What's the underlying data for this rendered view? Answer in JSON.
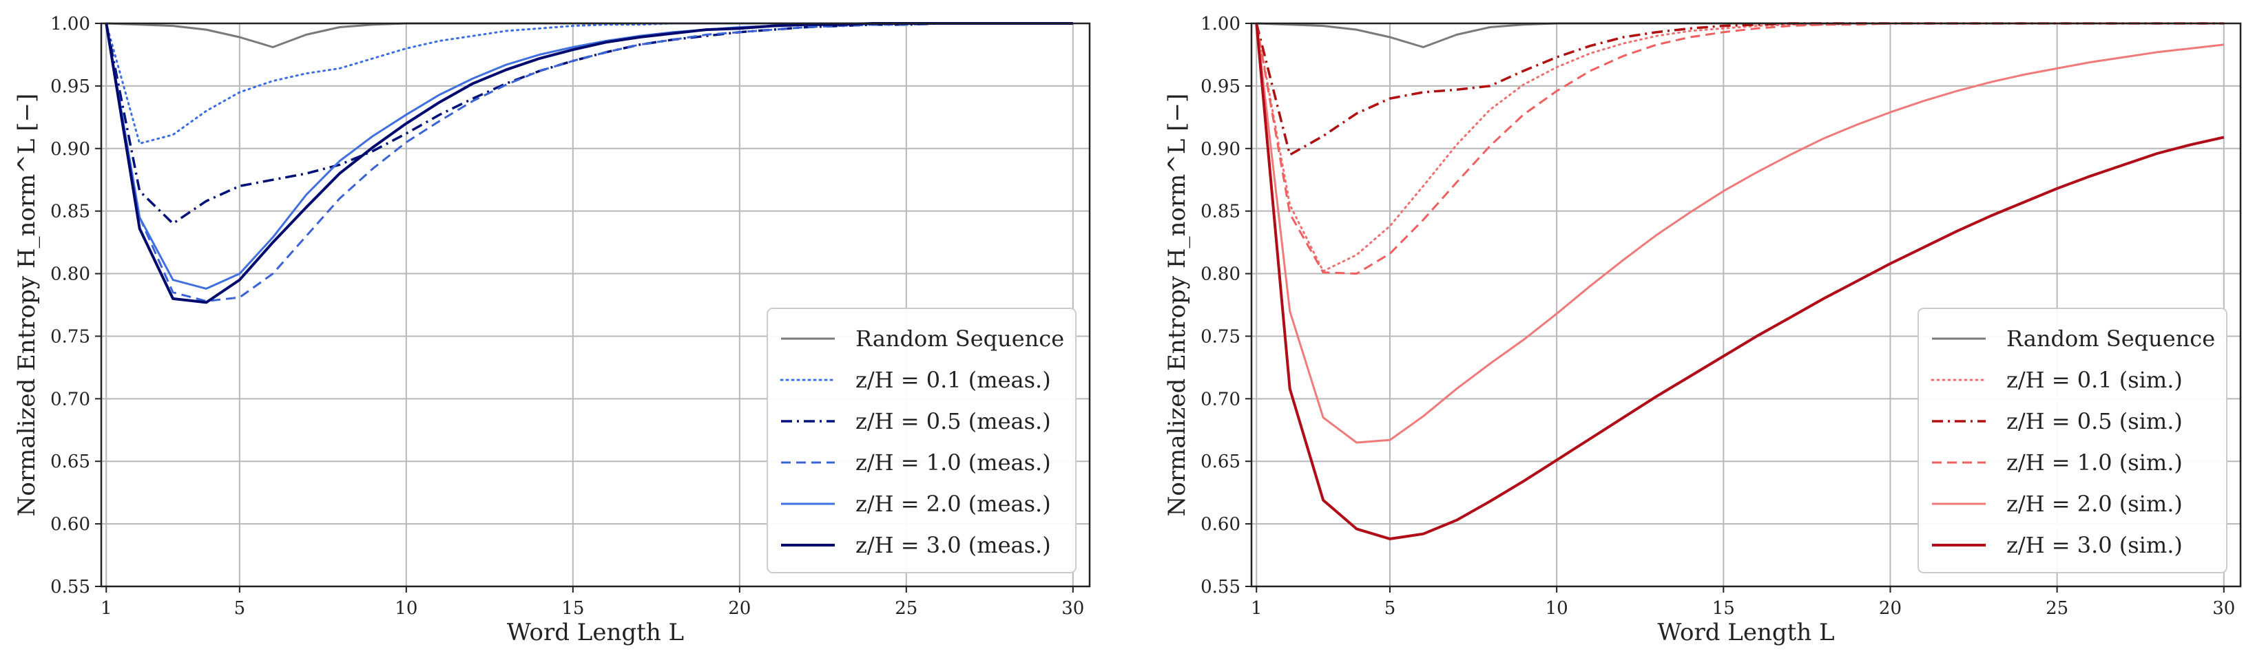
{
  "chart_data": [
    {
      "type": "line",
      "title": "",
      "xlabel": "Word Length L",
      "ylabel": "Normalized Entropy H_norm^L [−]",
      "xlim": [
        0.85,
        30.5
      ],
      "ylim": [
        0.55,
        1.0
      ],
      "xticks": [
        1,
        5,
        10,
        15,
        20,
        25,
        30
      ],
      "yticks": [
        0.55,
        0.6,
        0.65,
        0.7,
        0.75,
        0.8,
        0.85,
        0.9,
        0.95,
        1.0
      ],
      "grid": true,
      "legend_position": "bottom-right",
      "x": [
        1,
        2,
        3,
        4,
        5,
        6,
        7,
        8,
        9,
        10,
        11,
        12,
        13,
        14,
        15,
        16,
        17,
        18,
        19,
        20,
        21,
        22,
        23,
        24,
        25,
        26,
        27,
        28,
        29,
        30
      ],
      "series": [
        {
          "name": "Random Sequence",
          "color": "#7a7a7a",
          "dash": "solid",
          "width": 3,
          "values": [
            1.0,
            0.999,
            0.998,
            0.995,
            0.989,
            0.981,
            0.991,
            0.997,
            0.999,
            1.0,
            1.0,
            1.0,
            1.0,
            1.0,
            1.0,
            1.0,
            1.0,
            1.0,
            1.0,
            1.0,
            1.0,
            1.0,
            1.0,
            1.0,
            1.0,
            1.0,
            1.0,
            1.0,
            1.0,
            1.0
          ]
        },
        {
          "name": "z/H = 0.1 (meas.)",
          "color": "#3a6ee6",
          "dash": "dotted",
          "width": 3,
          "values": [
            1.0,
            0.904,
            0.911,
            0.93,
            0.945,
            0.954,
            0.96,
            0.964,
            0.972,
            0.98,
            0.986,
            0.99,
            0.994,
            0.996,
            0.998,
            0.999,
            0.999,
            1.0,
            1.0,
            1.0,
            1.0,
            1.0,
            1.0,
            1.0,
            1.0,
            1.0,
            1.0,
            1.0,
            1.0,
            1.0
          ]
        },
        {
          "name": "z/H = 0.5 (meas.)",
          "color": "#00127a",
          "dash": "dashdot",
          "width": 3.5,
          "values": [
            1.0,
            0.866,
            0.84,
            0.858,
            0.87,
            0.875,
            0.88,
            0.887,
            0.898,
            0.912,
            0.927,
            0.94,
            0.952,
            0.962,
            0.97,
            0.977,
            0.983,
            0.987,
            0.99,
            0.993,
            0.995,
            0.997,
            0.998,
            0.999,
            0.999,
            1.0,
            1.0,
            1.0,
            1.0,
            1.0
          ]
        },
        {
          "name": "z/H = 1.0 (meas.)",
          "color": "#3b63d6",
          "dash": "dashed",
          "width": 3,
          "values": [
            1.0,
            0.845,
            0.785,
            0.778,
            0.781,
            0.8,
            0.83,
            0.86,
            0.884,
            0.905,
            0.922,
            0.938,
            0.951,
            0.962,
            0.97,
            0.977,
            0.983,
            0.987,
            0.991,
            0.993,
            0.995,
            0.997,
            0.998,
            0.999,
            0.999,
            1.0,
            1.0,
            1.0,
            1.0,
            1.0
          ]
        },
        {
          "name": "z/H = 2.0 (meas.)",
          "color": "#4070e0",
          "dash": "solid",
          "width": 3,
          "values": [
            1.0,
            0.845,
            0.795,
            0.788,
            0.8,
            0.829,
            0.863,
            0.89,
            0.91,
            0.927,
            0.943,
            0.956,
            0.967,
            0.975,
            0.981,
            0.986,
            0.99,
            0.993,
            0.995,
            0.997,
            0.998,
            0.999,
            0.999,
            1.0,
            1.0,
            1.0,
            1.0,
            1.0,
            1.0,
            1.0
          ]
        },
        {
          "name": "z/H = 3.0 (meas.)",
          "color": "#000a6e",
          "dash": "solid",
          "width": 4,
          "values": [
            1.0,
            0.836,
            0.78,
            0.777,
            0.795,
            0.825,
            0.853,
            0.88,
            0.901,
            0.92,
            0.937,
            0.952,
            0.963,
            0.972,
            0.979,
            0.985,
            0.989,
            0.992,
            0.995,
            0.996,
            0.998,
            0.999,
            0.999,
            1.0,
            1.0,
            1.0,
            1.0,
            1.0,
            1.0,
            1.0
          ]
        }
      ]
    },
    {
      "type": "line",
      "title": "",
      "xlabel": "Word Length L",
      "ylabel": "Normalized Entropy H_norm^L [−]",
      "xlim": [
        0.85,
        30.5
      ],
      "ylim": [
        0.55,
        1.0
      ],
      "xticks": [
        1,
        5,
        10,
        15,
        20,
        25,
        30
      ],
      "yticks": [
        0.55,
        0.6,
        0.65,
        0.7,
        0.75,
        0.8,
        0.85,
        0.9,
        0.95,
        1.0
      ],
      "grid": true,
      "legend_position": "bottom-right",
      "x": [
        1,
        2,
        3,
        4,
        5,
        6,
        7,
        8,
        9,
        10,
        11,
        12,
        13,
        14,
        15,
        16,
        17,
        18,
        19,
        20,
        21,
        22,
        23,
        24,
        25,
        26,
        27,
        28,
        29,
        30
      ],
      "series": [
        {
          "name": "Random Sequence",
          "color": "#7a7a7a",
          "dash": "solid",
          "width": 3,
          "values": [
            1.0,
            0.999,
            0.998,
            0.995,
            0.989,
            0.981,
            0.991,
            0.997,
            0.999,
            1.0,
            1.0,
            1.0,
            1.0,
            1.0,
            1.0,
            1.0,
            1.0,
            1.0,
            1.0,
            1.0,
            1.0,
            1.0,
            1.0,
            1.0,
            1.0,
            1.0,
            1.0,
            1.0,
            1.0,
            1.0
          ]
        },
        {
          "name": "z/H = 0.1 (sim.)",
          "color": "#f07070",
          "dash": "dotted",
          "width": 3,
          "values": [
            1.0,
            0.855,
            0.802,
            0.815,
            0.838,
            0.87,
            0.903,
            0.931,
            0.951,
            0.965,
            0.976,
            0.984,
            0.99,
            0.994,
            0.996,
            0.998,
            0.999,
            0.999,
            1.0,
            1.0,
            1.0,
            1.0,
            1.0,
            1.0,
            1.0,
            1.0,
            1.0,
            1.0,
            1.0,
            1.0
          ]
        },
        {
          "name": "z/H = 0.5 (sim.)",
          "color": "#b01010",
          "dash": "dashdot",
          "width": 3.5,
          "values": [
            1.0,
            0.895,
            0.91,
            0.928,
            0.94,
            0.945,
            0.947,
            0.95,
            0.962,
            0.973,
            0.982,
            0.989,
            0.993,
            0.996,
            0.998,
            0.999,
            1.0,
            1.0,
            1.0,
            1.0,
            1.0,
            1.0,
            1.0,
            1.0,
            1.0,
            1.0,
            1.0,
            1.0,
            1.0,
            1.0
          ]
        },
        {
          "name": "z/H = 1.0 (sim.)",
          "color": "#f06060",
          "dash": "dashed",
          "width": 3,
          "values": [
            1.0,
            0.848,
            0.801,
            0.8,
            0.816,
            0.843,
            0.873,
            0.902,
            0.927,
            0.946,
            0.962,
            0.974,
            0.983,
            0.989,
            0.993,
            0.996,
            0.998,
            0.999,
            0.999,
            1.0,
            1.0,
            1.0,
            1.0,
            1.0,
            1.0,
            1.0,
            1.0,
            1.0,
            1.0,
            1.0
          ]
        },
        {
          "name": "z/H = 2.0 (sim.)",
          "color": "#f07a7a",
          "dash": "solid",
          "width": 3,
          "values": [
            1.0,
            0.77,
            0.685,
            0.665,
            0.667,
            0.686,
            0.708,
            0.728,
            0.747,
            0.768,
            0.79,
            0.811,
            0.831,
            0.849,
            0.866,
            0.881,
            0.895,
            0.908,
            0.919,
            0.929,
            0.938,
            0.946,
            0.953,
            0.959,
            0.964,
            0.969,
            0.973,
            0.977,
            0.98,
            0.983
          ]
        },
        {
          "name": "z/H = 3.0 (sim.)",
          "color": "#b00d18",
          "dash": "solid",
          "width": 4,
          "values": [
            1.0,
            0.708,
            0.619,
            0.596,
            0.588,
            0.592,
            0.603,
            0.618,
            0.634,
            0.651,
            0.668,
            0.685,
            0.702,
            0.718,
            0.734,
            0.75,
            0.765,
            0.78,
            0.794,
            0.808,
            0.821,
            0.834,
            0.846,
            0.857,
            0.868,
            0.878,
            0.887,
            0.896,
            0.903,
            0.909
          ]
        }
      ]
    }
  ]
}
